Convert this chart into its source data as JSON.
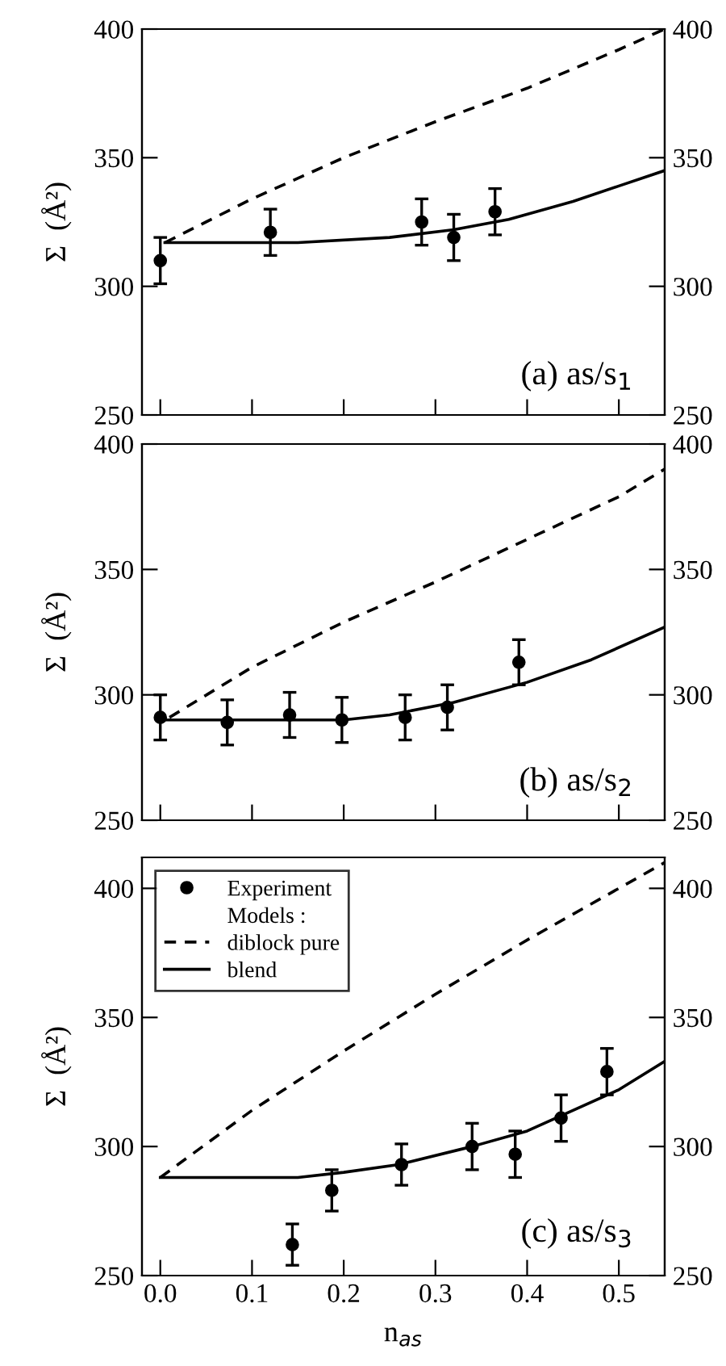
{
  "chart_data": [
    {
      "type": "scatter",
      "ylabel": "Σ  (Å²)",
      "annotations": [
        "(a) as/s$_{1}$"
      ],
      "xlim": [
        -0.02,
        0.55
      ],
      "xticks": [
        0.0,
        0.1,
        0.2,
        0.3,
        0.4,
        0.5
      ],
      "ylim": [
        250,
        400
      ],
      "yticks": [
        250,
        300,
        350,
        400
      ],
      "y2lim": [
        250,
        400
      ],
      "y2ticks": [
        250,
        300,
        350,
        400
      ],
      "tick_labels": "y",
      "grid": false,
      "legend": false,
      "series": [
        {
          "color": "#000000",
          "marker": "circle",
          "x": [
            0.0,
            0.12,
            0.285,
            0.32,
            0.365
          ],
          "values": [
            310,
            321,
            325,
            319,
            329
          ],
          "errors": [
            9,
            9,
            9,
            9,
            9
          ]
        },
        {
          "type": "line",
          "color": "#000000",
          "line_style": "dashed",
          "x": [
            0.005,
            0.1,
            0.2,
            0.3,
            0.4,
            0.5,
            0.55
          ],
          "values": [
            317,
            334,
            350,
            364,
            377,
            392,
            400
          ]
        },
        {
          "type": "line",
          "color": "#000000",
          "line_style": "solid",
          "x": [
            0.005,
            0.1,
            0.15,
            0.25,
            0.32,
            0.38,
            0.45,
            0.5,
            0.55
          ],
          "values": [
            317,
            317,
            317,
            319,
            322,
            326,
            333,
            339,
            345
          ]
        }
      ]
    },
    {
      "type": "scatter",
      "ylabel": "Σ  (Å²)",
      "annotations": [
        "(b) as/s$_{2}$"
      ],
      "xlim": [
        -0.02,
        0.55
      ],
      "xticks": [
        0.0,
        0.1,
        0.2,
        0.3,
        0.4,
        0.5
      ],
      "ylim": [
        250,
        400
      ],
      "yticks": [
        250,
        300,
        350,
        400
      ],
      "y2lim": [
        250,
        400
      ],
      "y2ticks": [
        250,
        300,
        350,
        400
      ],
      "tick_labels": "y",
      "grid": false,
      "legend": false,
      "series": [
        {
          "color": "#000000",
          "marker": "circle",
          "x": [
            0.0,
            0.073,
            0.141,
            0.198,
            0.267,
            0.313,
            0.391
          ],
          "values": [
            291,
            289,
            292,
            290,
            291,
            295,
            313
          ],
          "errors": [
            9,
            9,
            9,
            9,
            9,
            9,
            9
          ]
        },
        {
          "type": "line",
          "color": "#000000",
          "line_style": "dashed",
          "x": [
            0.01,
            0.1,
            0.2,
            0.3,
            0.4,
            0.5,
            0.55
          ],
          "values": [
            291,
            311,
            329,
            345,
            362,
            379,
            390
          ]
        },
        {
          "type": "line",
          "color": "#000000",
          "line_style": "solid",
          "x": [
            0.0,
            0.1,
            0.2,
            0.25,
            0.32,
            0.4,
            0.47,
            0.55
          ],
          "values": [
            290,
            290,
            290,
            292,
            297,
            305,
            314,
            327
          ]
        }
      ]
    },
    {
      "type": "scatter",
      "ylabel": "Σ  (Å²)",
      "xlabel": "n$_{as}$",
      "legend_title": "Models :",
      "annotations": [
        "(c) as/s$_{3}$"
      ],
      "xlim": [
        -0.02,
        0.55
      ],
      "xticks": [
        {
          "value": 0,
          "label": "0.0"
        },
        0.1,
        0.2,
        0.3,
        0.4,
        0.5
      ],
      "ylim": [
        250,
        412
      ],
      "yticks": [
        250,
        300,
        350,
        400
      ],
      "y2lim": [
        250,
        412
      ],
      "y2ticks": [
        250,
        300,
        350,
        400
      ],
      "grid": false,
      "legend": "top left",
      "series": [
        {
          "name": "Experiment",
          "color": "#000000",
          "marker": "circle",
          "x": [
            0.144,
            0.187,
            0.263,
            0.34,
            0.387,
            0.437,
            0.487
          ],
          "values": [
            262,
            283,
            293,
            300,
            297,
            311,
            329
          ],
          "errors": [
            8,
            8,
            8,
            9,
            9,
            9,
            9
          ]
        },
        {
          "type": "line",
          "name": "diblock pure",
          "color": "#000000",
          "line_style": "dashed",
          "x": [
            0.0,
            0.1,
            0.2,
            0.3,
            0.4,
            0.5,
            0.55
          ],
          "values": [
            288,
            314,
            337,
            359,
            380,
            400,
            410
          ]
        },
        {
          "type": "line",
          "name": "blend",
          "color": "#000000",
          "line_style": "solid",
          "x": [
            0.0,
            0.1,
            0.15,
            0.2,
            0.26,
            0.34,
            0.4,
            0.45,
            0.5,
            0.55
          ],
          "values": [
            288,
            288,
            288,
            290,
            293,
            300,
            306,
            314,
            322,
            333
          ]
        }
      ]
    }
  ]
}
